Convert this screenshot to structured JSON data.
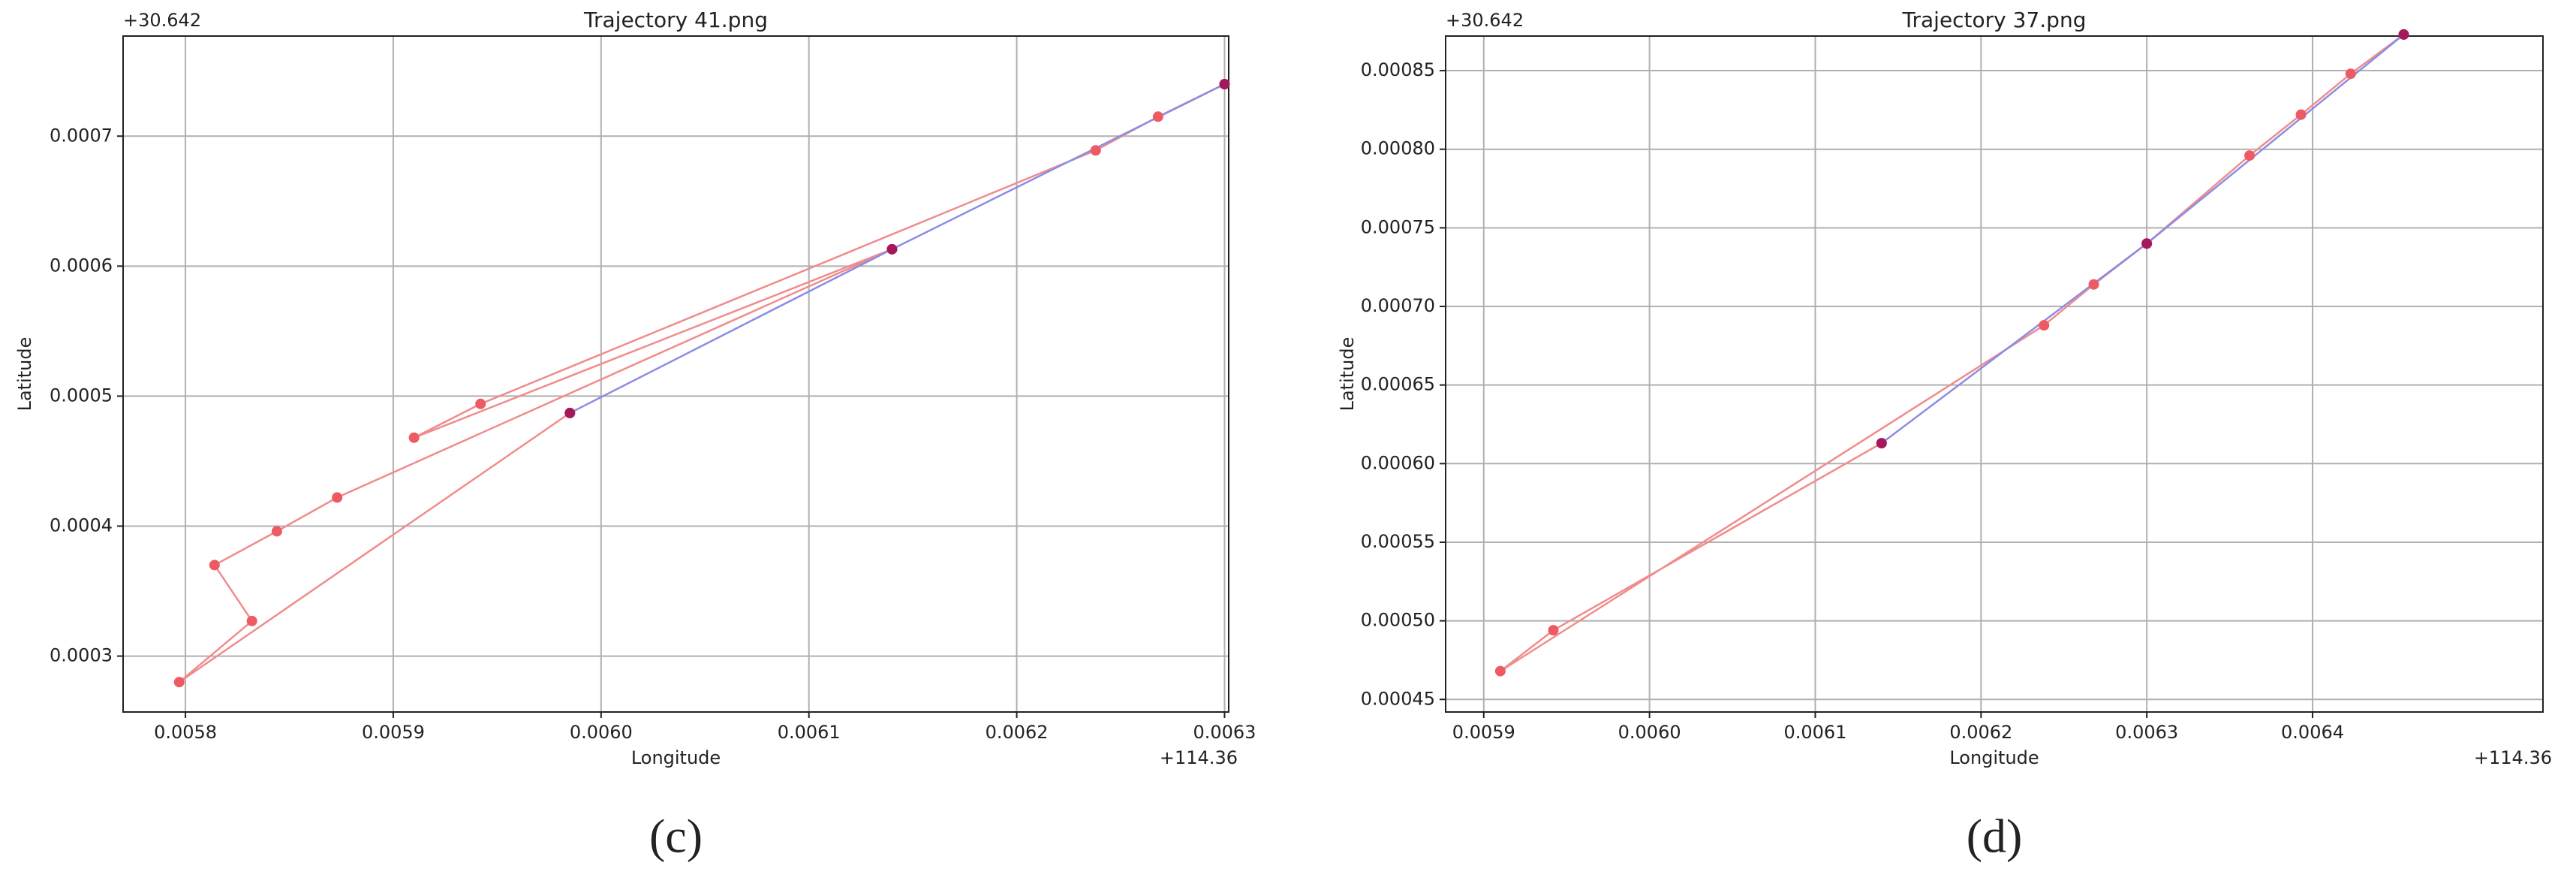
{
  "chart_data": [
    {
      "type": "line",
      "title": "Trajectory 41.png",
      "x_label": "Longitude",
      "y_label": "Latitude",
      "x_offset": "+114.36",
      "y_offset": "+30.642",
      "caption": "(c)",
      "xlim": [
        0.00577,
        0.006302
      ],
      "ylim": [
        0.000257,
        0.000777
      ],
      "xticks": [
        0.0058,
        0.0059,
        {
          "value": 0.006,
          "label": "0.0060"
        },
        0.0061,
        0.0062,
        0.0063
      ],
      "yticks": [
        0.0003,
        0.0004,
        0.0005,
        0.0006,
        0.0007
      ],
      "grid": true,
      "series": [
        {
          "color": "#ee5a64",
          "line_color": "#f08c8c",
          "x": [
            0.0063,
            0.006268,
            0.006238,
            0.005942,
            0.00591,
            0.00614,
            0.005873,
            0.005844,
            0.005814,
            0.005832,
            0.005797,
            0.005985
          ],
          "values": [
            0.00074,
            0.000715,
            0.000689,
            0.000494,
            0.000468,
            0.000613,
            0.000422,
            0.000396,
            0.00037,
            0.000327,
            0.00028,
            0.000487
          ]
        },
        {
          "color": "#a3195b",
          "line_color": "#8c8ce6",
          "x": [
            0.0063,
            0.00614,
            0.005985
          ],
          "values": [
            0.00074,
            0.000613,
            0.000487
          ]
        }
      ]
    },
    {
      "type": "line",
      "title": "Trajectory 37.png",
      "x_label": "Longitude",
      "y_label": "Latitude",
      "x_offset": "+114.36",
      "y_offset": "+30.642",
      "caption": "(d)",
      "xlim": [
        0.005877,
        0.006539
      ],
      "ylim": [
        0.000442,
        0.000872
      ],
      "xticks": [
        0.0059,
        {
          "value": 0.006,
          "label": "0.0060"
        },
        0.0061,
        0.0062,
        0.0063,
        0.0064
      ],
      "yticks": [
        0.00045,
        {
          "value": 0.0005,
          "label": "0.00050"
        },
        0.00055,
        {
          "value": 0.0006,
          "label": "0.00060"
        },
        0.00065,
        {
          "value": 0.0007,
          "label": "0.00070"
        },
        0.00075,
        {
          "value": 0.0008,
          "label": "0.00080"
        },
        0.00085
      ],
      "grid": true,
      "series": [
        {
          "color": "#ee5a64",
          "line_color": "#f08c8c",
          "x": [
            0.006455,
            0.006423,
            0.006393,
            0.006362,
            0.0063,
            0.006268,
            0.006238,
            0.00591,
            0.005942,
            0.00614
          ],
          "values": [
            0.000873,
            0.000848,
            0.000822,
            0.000796,
            0.00074,
            0.000714,
            0.000688,
            0.000468,
            0.000494,
            0.000613
          ]
        },
        {
          "color": "#a3195b",
          "line_color": "#8c8ce6",
          "x": [
            0.006455,
            0.0063,
            0.00614
          ],
          "values": [
            0.000873,
            0.00074,
            0.000613
          ]
        }
      ]
    }
  ]
}
